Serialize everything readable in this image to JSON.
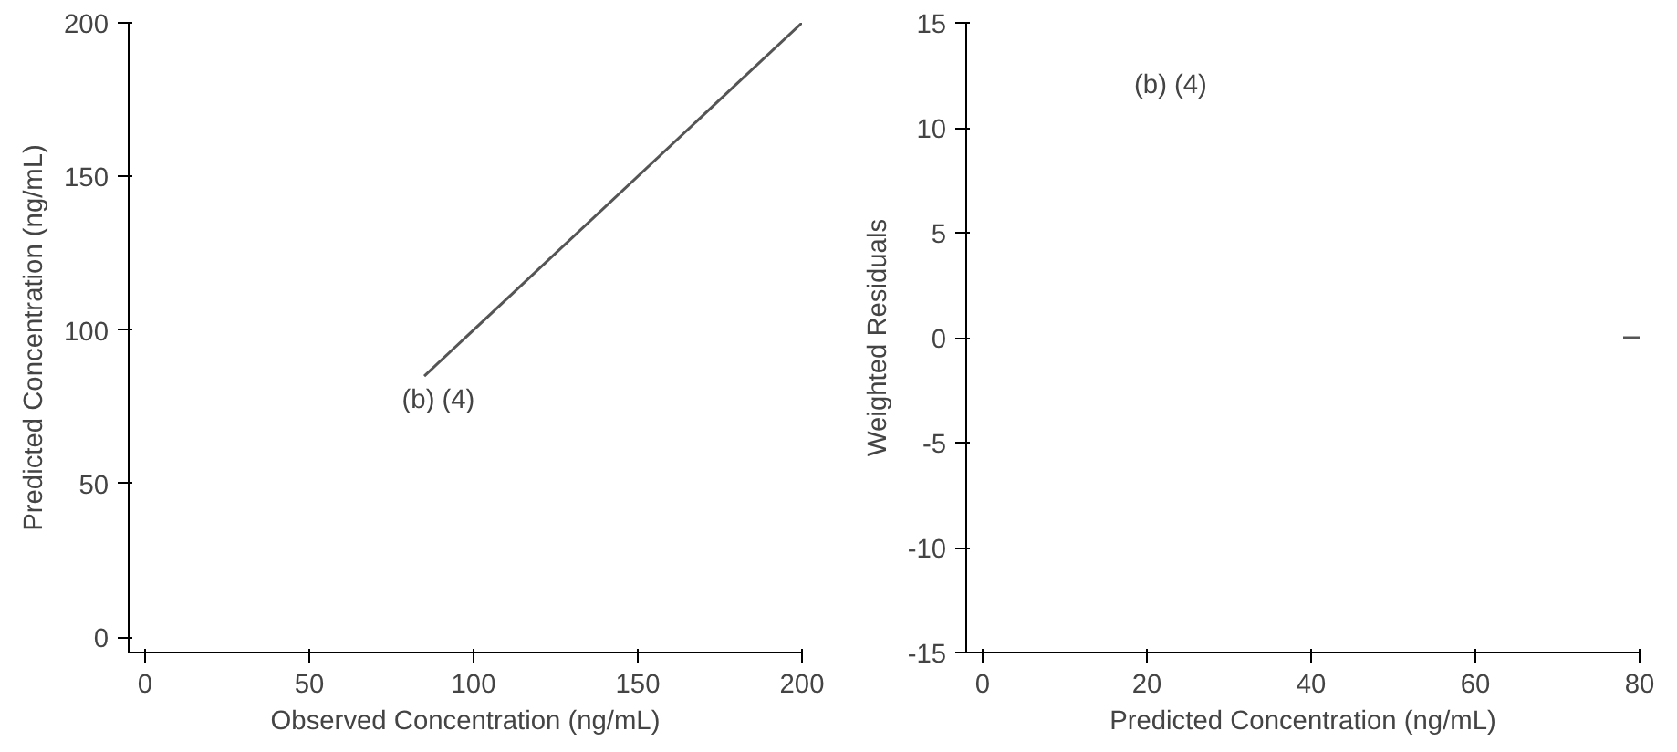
{
  "chart_data": [
    {
      "type": "line",
      "xlabel": "Observed Concentration (ng/mL)",
      "ylabel": "Predicted Concentration (ng/mL)",
      "xlim": [
        -5,
        200
      ],
      "ylim": [
        -5,
        200
      ],
      "xticks": [
        0,
        50,
        100,
        150,
        200
      ],
      "yticks": [
        0,
        50,
        100,
        150,
        200
      ],
      "grid": false,
      "series": [
        {
          "color": "#555555",
          "x": [
            85,
            200
          ],
          "values": [
            85,
            200
          ]
        }
      ],
      "annotations": [
        "(b) (4)"
      ]
    },
    {
      "type": "line",
      "xlabel": "Predicted Concentration (ng/mL)",
      "ylabel": "Weighted Residuals",
      "xlim": [
        -2,
        80
      ],
      "ylim": [
        -15,
        15
      ],
      "xticks": [
        0,
        20,
        40,
        60,
        80
      ],
      "yticks": [
        -15,
        -10,
        -5,
        0,
        5,
        10,
        15
      ],
      "grid": false,
      "series": [
        {
          "color": "#555555",
          "x": [
            78,
            80
          ],
          "values": [
            0,
            0
          ]
        }
      ],
      "annotations": [
        "(b) (4)"
      ]
    }
  ]
}
